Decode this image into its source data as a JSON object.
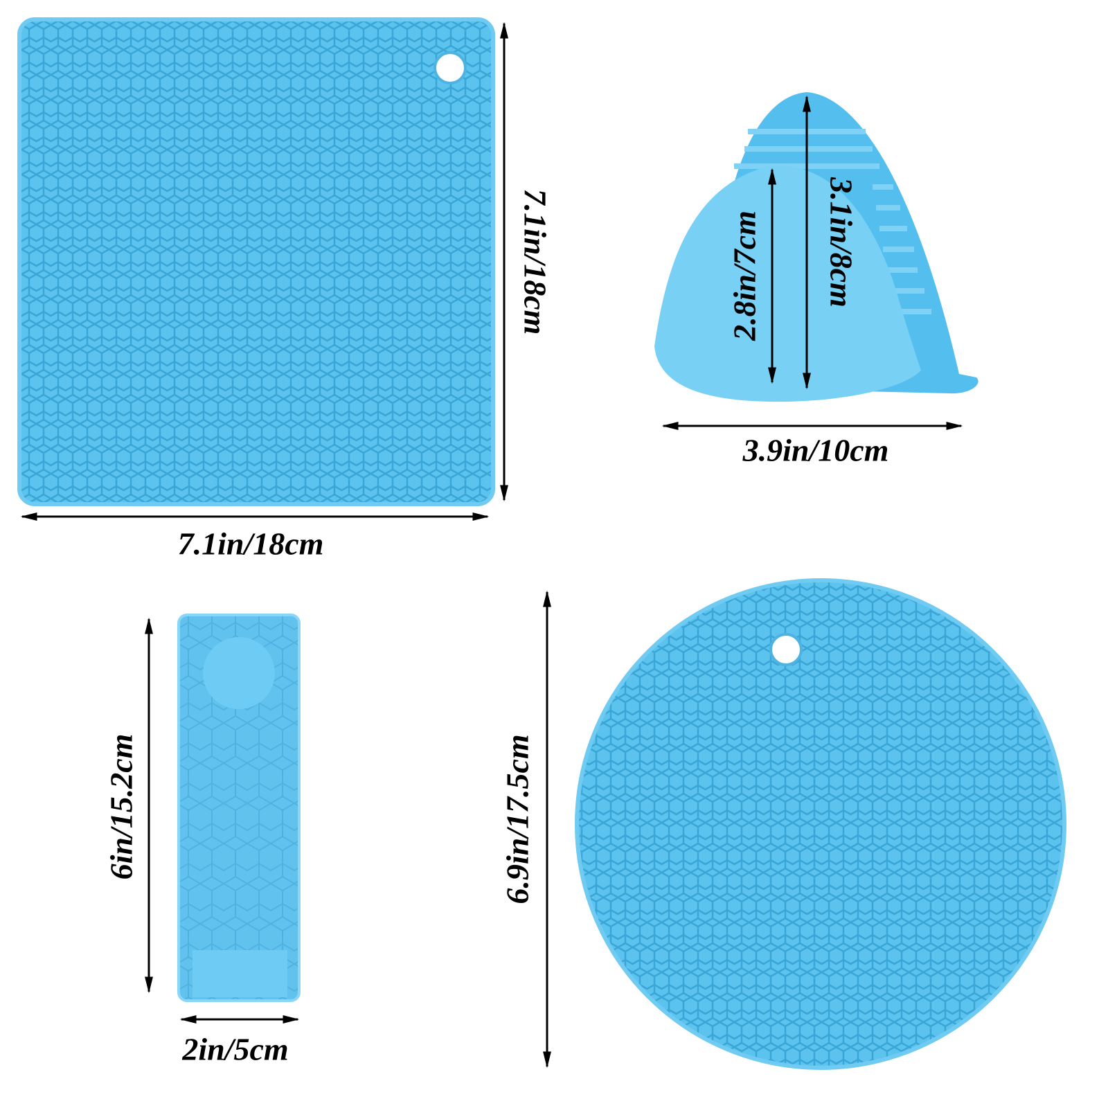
{
  "square_trivet": {
    "height_label": "7.1in/18cm",
    "width_label": "7.1in/18cm"
  },
  "oven_mitt": {
    "inner_height_label": "2.8in/7cm",
    "height_label": "3.1in/8cm",
    "width_label": "3.9in/10cm"
  },
  "handle_holder": {
    "height_label": "6in/15.2cm",
    "width_label": "2in/5cm"
  },
  "round_trivet": {
    "diameter_label": "6.9in/17.5cm"
  }
}
